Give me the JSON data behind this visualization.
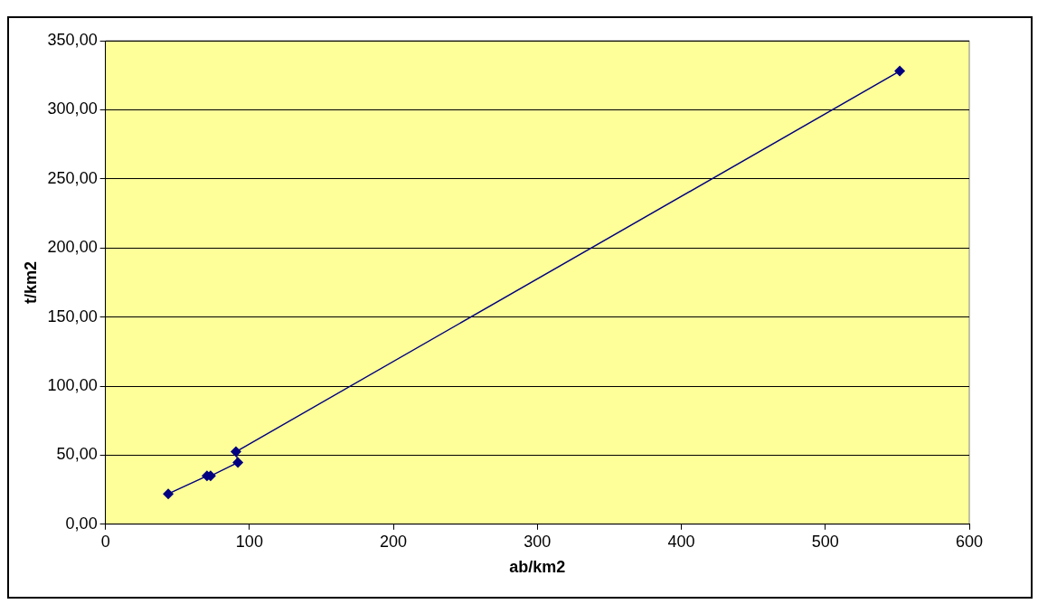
{
  "chart_data": {
    "type": "line",
    "xlabel": "ab/km2",
    "ylabel": "t/km2",
    "x": [
      43.6,
      70.5,
      73,
      92,
      90.6,
      551.7
    ],
    "series": [
      {
        "color": "#000080",
        "values": [
          22,
          35,
          35,
          44.7,
          52.5,
          328
        ]
      }
    ],
    "xlim": [
      0,
      600
    ],
    "xticks": [
      0,
      100,
      200,
      300,
      400,
      500,
      600
    ],
    "ylim": [
      0,
      350
    ],
    "yticks": [
      {
        "value": 0,
        "label": "0,00"
      },
      {
        "value": 50,
        "label": "50,00"
      },
      {
        "value": 100,
        "label": "100,00"
      },
      {
        "value": 150,
        "label": "150,00"
      },
      {
        "value": 200,
        "label": "200,00"
      },
      {
        "value": 250,
        "label": "250,00"
      },
      {
        "value": 300,
        "label": "300,00"
      },
      {
        "value": 350,
        "label": "350,00"
      }
    ],
    "grid": "y",
    "legend": false,
    "marker": "diamond",
    "line_style": "solid"
  }
}
